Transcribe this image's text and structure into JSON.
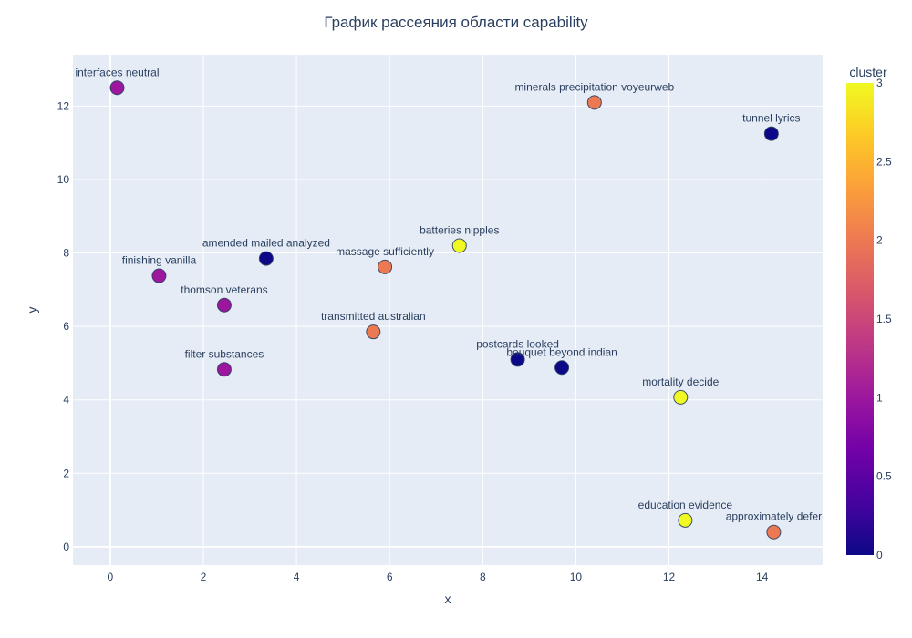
{
  "chart_data": {
    "type": "scatter",
    "title": "График рассеяния области capability",
    "xlabel": "x",
    "ylabel": "y",
    "xlim": [
      -0.8,
      15.3
    ],
    "ylim": [
      -0.5,
      13.4
    ],
    "x_ticks": [
      0,
      2,
      4,
      6,
      8,
      10,
      12,
      14
    ],
    "y_ticks": [
      0,
      2,
      4,
      6,
      8,
      10,
      12
    ],
    "grid": true,
    "plot_bg": "#e5ecf6",
    "colorbar": {
      "title": "cluster",
      "range": [
        0,
        3
      ],
      "ticks": [
        "0",
        "0.5",
        "1",
        "1.5",
        "2",
        "2.5",
        "3"
      ],
      "colorscale": [
        "#0d0887",
        "#46039f",
        "#7201a8",
        "#9c179e",
        "#bd3786",
        "#d8576b",
        "#ed7953",
        "#fb9f3a",
        "#fdca26",
        "#f0f921"
      ]
    },
    "points": [
      {
        "label": "interfaces neutral",
        "x": 0.15,
        "y": 12.5,
        "cluster": 1
      },
      {
        "label": "minerals precipitation voyeurweb",
        "x": 10.4,
        "y": 12.1,
        "cluster": 2
      },
      {
        "label": "tunnel lyrics",
        "x": 14.2,
        "y": 11.25,
        "cluster": 0
      },
      {
        "label": "batteries nipples",
        "x": 7.5,
        "y": 8.2,
        "cluster": 3
      },
      {
        "label": "amended mailed analyzed",
        "x": 3.35,
        "y": 7.85,
        "cluster": 0
      },
      {
        "label": "massage sufficiently",
        "x": 5.9,
        "y": 7.62,
        "cluster": 2
      },
      {
        "label": "finishing vanilla",
        "x": 1.05,
        "y": 7.38,
        "cluster": 1
      },
      {
        "label": "thomson veterans",
        "x": 2.45,
        "y": 6.58,
        "cluster": 1
      },
      {
        "label": "transmitted australian",
        "x": 5.65,
        "y": 5.85,
        "cluster": 2
      },
      {
        "label": "postcards looked",
        "x": 8.75,
        "y": 5.1,
        "cluster": 0
      },
      {
        "label": "bouquet beyond indian",
        "x": 9.7,
        "y": 4.88,
        "cluster": 0
      },
      {
        "label": "filter substances",
        "x": 2.45,
        "y": 4.83,
        "cluster": 1
      },
      {
        "label": "mortality decide",
        "x": 12.25,
        "y": 4.07,
        "cluster": 3
      },
      {
        "label": "education evidence",
        "x": 12.35,
        "y": 0.72,
        "cluster": 3
      },
      {
        "label": "approximately defer",
        "x": 14.25,
        "y": 0.4,
        "cluster": 2
      }
    ]
  }
}
